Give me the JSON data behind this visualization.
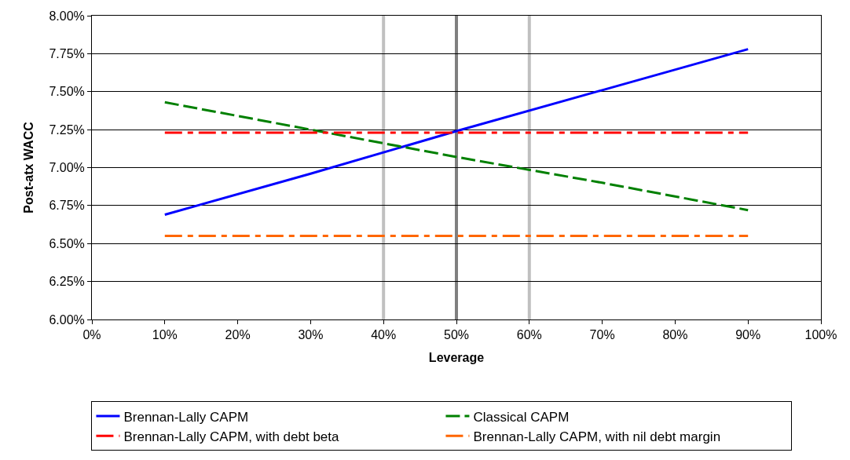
{
  "chart_data": {
    "type": "line",
    "xlabel": "Leverage",
    "ylabel": "Post-atx WACC",
    "xlim": [
      0,
      100
    ],
    "xticks": [
      {
        "value": 0,
        "label": "0%"
      },
      {
        "value": 10,
        "label": "10%"
      },
      {
        "value": 20,
        "label": "20%"
      },
      {
        "value": 30,
        "label": "30%"
      },
      {
        "value": 40,
        "label": "40%"
      },
      {
        "value": 50,
        "label": "50%"
      },
      {
        "value": 60,
        "label": "60%"
      },
      {
        "value": 70,
        "label": "70%"
      },
      {
        "value": 80,
        "label": "80%"
      },
      {
        "value": 90,
        "label": "90%"
      },
      {
        "value": 100,
        "label": "100%"
      }
    ],
    "ylim": [
      6,
      8
    ],
    "yticks": [
      {
        "value": 6,
        "label": "6.00%"
      },
      {
        "value": 6.25,
        "label": "6.25%"
      },
      {
        "value": 6.5,
        "label": "6.50%"
      },
      {
        "value": 6.75,
        "label": "6.75%"
      },
      {
        "value": 7,
        "label": "7.00%"
      },
      {
        "value": 7.25,
        "label": "7.25%"
      },
      {
        "value": 7.5,
        "label": "7.50%"
      },
      {
        "value": 7.75,
        "label": "7.75%"
      },
      {
        "value": 8,
        "label": "8.00%"
      }
    ],
    "grid": "y",
    "legend": "bottom",
    "marker": "none",
    "ref_lines": [
      {
        "axis": "x",
        "value": 40,
        "color": "#c0c0c0"
      },
      {
        "axis": "x",
        "value": 50,
        "color": "#808080"
      },
      {
        "axis": "x",
        "value": 60,
        "color": "#c0c0c0"
      }
    ],
    "series": [
      {
        "name": "Brennan-Lally CAPM",
        "color": "#0000ff",
        "line_style": "solid",
        "x": [
          10,
          30,
          50,
          70,
          90
        ],
        "values": [
          6.69,
          6.96,
          7.24,
          7.51,
          7.78
        ]
      },
      {
        "name": "Classical CAPM",
        "color": "#008000",
        "line_style": "dashed",
        "x": [
          10,
          30,
          50,
          70,
          90
        ],
        "values": [
          7.43,
          7.25,
          7.07,
          6.9,
          6.72
        ]
      },
      {
        "name": "Brennan-Lally CAPM, with debt beta",
        "color": "#ff0000",
        "line_style": "dashdot",
        "x": [
          10,
          90
        ],
        "values": [
          7.23,
          7.23
        ]
      },
      {
        "name": "Brennan-Lally CAPM, with nil debt margin",
        "color": "#ff6600",
        "line_style": "dashdot",
        "x": [
          10,
          90
        ],
        "values": [
          6.55,
          6.55
        ]
      }
    ]
  }
}
